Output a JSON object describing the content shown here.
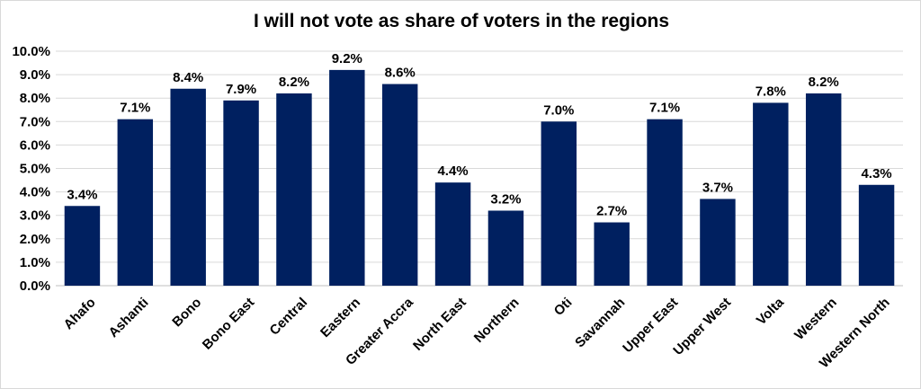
{
  "chart_data": {
    "type": "bar",
    "title": "I will not vote as share of voters in the regions",
    "categories": [
      "Ahafo",
      "Ashanti",
      "Bono",
      "Bono East",
      "Central",
      "Eastern",
      "Greater Accra",
      "North East",
      "Northern",
      "Oti",
      "Savannah",
      "Upper East",
      "Upper West",
      "Volta",
      "Western",
      "Western North"
    ],
    "values": [
      3.4,
      7.1,
      8.4,
      7.9,
      8.2,
      9.2,
      8.6,
      4.4,
      3.2,
      7.0,
      2.7,
      7.1,
      3.7,
      7.8,
      8.2,
      4.3
    ],
    "value_labels": [
      "3.4%",
      "7.1%",
      "8.4%",
      "7.9%",
      "8.2%",
      "9.2%",
      "8.6%",
      "4.4%",
      "3.2%",
      "7.0%",
      "2.7%",
      "7.1%",
      "3.7%",
      "7.8%",
      "8.2%",
      "4.3%"
    ],
    "y_ticks": [
      "0.0%",
      "1.0%",
      "2.0%",
      "3.0%",
      "4.0%",
      "5.0%",
      "6.0%",
      "7.0%",
      "8.0%",
      "9.0%",
      "10.0%"
    ],
    "ylim": [
      0,
      10
    ],
    "xlabel": "",
    "ylabel": "",
    "grid": true,
    "legend": "none",
    "colors": {
      "bar": "#002060",
      "grid": "#d9d9d9",
      "axis": "#bfbfbf"
    }
  }
}
